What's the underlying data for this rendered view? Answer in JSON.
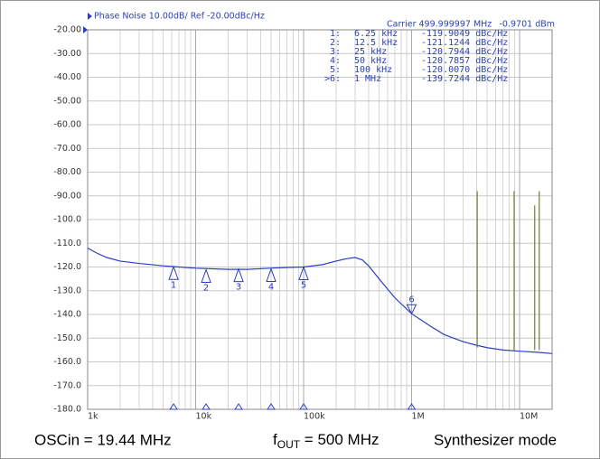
{
  "chart_data": {
    "type": "line",
    "title": "Phase Noise 10.00dB/ Ref -20.00dBc/Hz",
    "carrier": "Carrier 499.999997 MHz",
    "carrier_power": "-0.9701 dBm",
    "xscale": "log",
    "grid": true,
    "xlim": [
      1000,
      20000000
    ],
    "ylim": [
      -180,
      -20
    ],
    "xticks": [
      {
        "value": 1000,
        "label": "1k"
      },
      {
        "value": 10000,
        "label": "10k"
      },
      {
        "value": 100000,
        "label": "100k"
      },
      {
        "value": 1000000,
        "label": "1M"
      },
      {
        "value": 10000000,
        "label": "10M"
      }
    ],
    "xminorticks": [
      2000,
      3000,
      4000,
      5000,
      6000,
      7000,
      8000,
      9000,
      20000,
      30000,
      40000,
      50000,
      60000,
      70000,
      80000,
      90000,
      200000,
      300000,
      400000,
      500000,
      600000,
      700000,
      800000,
      900000,
      2000000,
      3000000,
      4000000,
      5000000,
      6000000,
      7000000,
      8000000,
      9000000,
      20000000
    ],
    "yticks": [
      {
        "value": -20,
        "label": "-20.00"
      },
      {
        "value": -30,
        "label": "-30.00"
      },
      {
        "value": -40,
        "label": "-40.00"
      },
      {
        "value": -50,
        "label": "-50.00"
      },
      {
        "value": -60,
        "label": "-60.00"
      },
      {
        "value": -70,
        "label": "-70.00"
      },
      {
        "value": -80,
        "label": "-80.00"
      },
      {
        "value": -90,
        "label": "-90.00"
      },
      {
        "value": -100,
        "label": "-100.0"
      },
      {
        "value": -110,
        "label": "-110.0"
      },
      {
        "value": -120,
        "label": "-120.0"
      },
      {
        "value": -130,
        "label": "-130.0"
      },
      {
        "value": -140,
        "label": "-140.0"
      },
      {
        "value": -150,
        "label": "-150.0"
      },
      {
        "value": -160,
        "label": "-160.0"
      },
      {
        "value": -170,
        "label": "-170.0"
      },
      {
        "value": -180,
        "label": "-180.0"
      }
    ],
    "series": [
      {
        "color": "#2a3fc4",
        "x": [
          1000,
          1200,
          1500,
          2000,
          3000,
          5000,
          7000,
          10000,
          20000,
          30000,
          50000,
          70000,
          100000,
          150000,
          200000,
          250000,
          300000,
          350000,
          400000,
          500000,
          700000,
          1000000,
          1500000,
          2000000,
          3000000,
          4000000,
          5000000,
          7000000,
          10000000,
          15000000,
          20000000
        ],
        "values": [
          -112,
          -114,
          -116,
          -117.5,
          -118.5,
          -119.5,
          -120,
          -120.5,
          -121,
          -121,
          -120.5,
          -120.2,
          -120,
          -119,
          -117.5,
          -116.5,
          -116,
          -117,
          -119.5,
          -125,
          -133,
          -139.7,
          -145,
          -148.5,
          -151.5,
          -153,
          -154,
          -155,
          -155.5,
          -156,
          -156.5
        ]
      },
      {
        "color": "#7a7a3a",
        "x": [
          4050000,
          4050000,
          4050000,
          8900000,
          8900000,
          8900000,
          13800000,
          13800000,
          13800000,
          15200000,
          15200000
        ],
        "values": [
          -154,
          -88,
          null,
          -155,
          -88,
          null,
          -155,
          -94,
          null,
          -155,
          -88
        ]
      }
    ],
    "markers": [
      {
        "label": "1",
        "index": "1:",
        "x": 6250,
        "freq": "6.25 kHz",
        "y": -119.9049,
        "level": "-119.9049 dBc/Hz"
      },
      {
        "label": "2",
        "index": "2:",
        "x": 12500,
        "freq": "12.5 kHz",
        "y": -121.1244,
        "level": "-121.1244 dBc/Hz"
      },
      {
        "label": "3",
        "index": "3:",
        "x": 25000,
        "freq": "25 kHz",
        "y": -120.7944,
        "level": "-120.7944 dBc/Hz"
      },
      {
        "label": "4",
        "index": "4:",
        "x": 50000,
        "freq": "50 kHz",
        "y": -120.7857,
        "level": "-120.7857 dBc/Hz"
      },
      {
        "label": "5",
        "index": "5:",
        "x": 100000,
        "freq": "100 kHz",
        "y": -120.007,
        "level": "-120.0070 dBc/Hz"
      },
      {
        "label": "6",
        "index": ">6:",
        "x": 1000000,
        "freq": "1 MHz",
        "y": -139.7244,
        "level": "-139.7244 dBc/Hz"
      }
    ],
    "caption_left": "OSCin = 19.44 MHz",
    "caption_f": "f",
    "caption_sub": "OUT",
    "caption_mid": " = 500 MHz",
    "caption_right": "Synthesizer mode"
  }
}
